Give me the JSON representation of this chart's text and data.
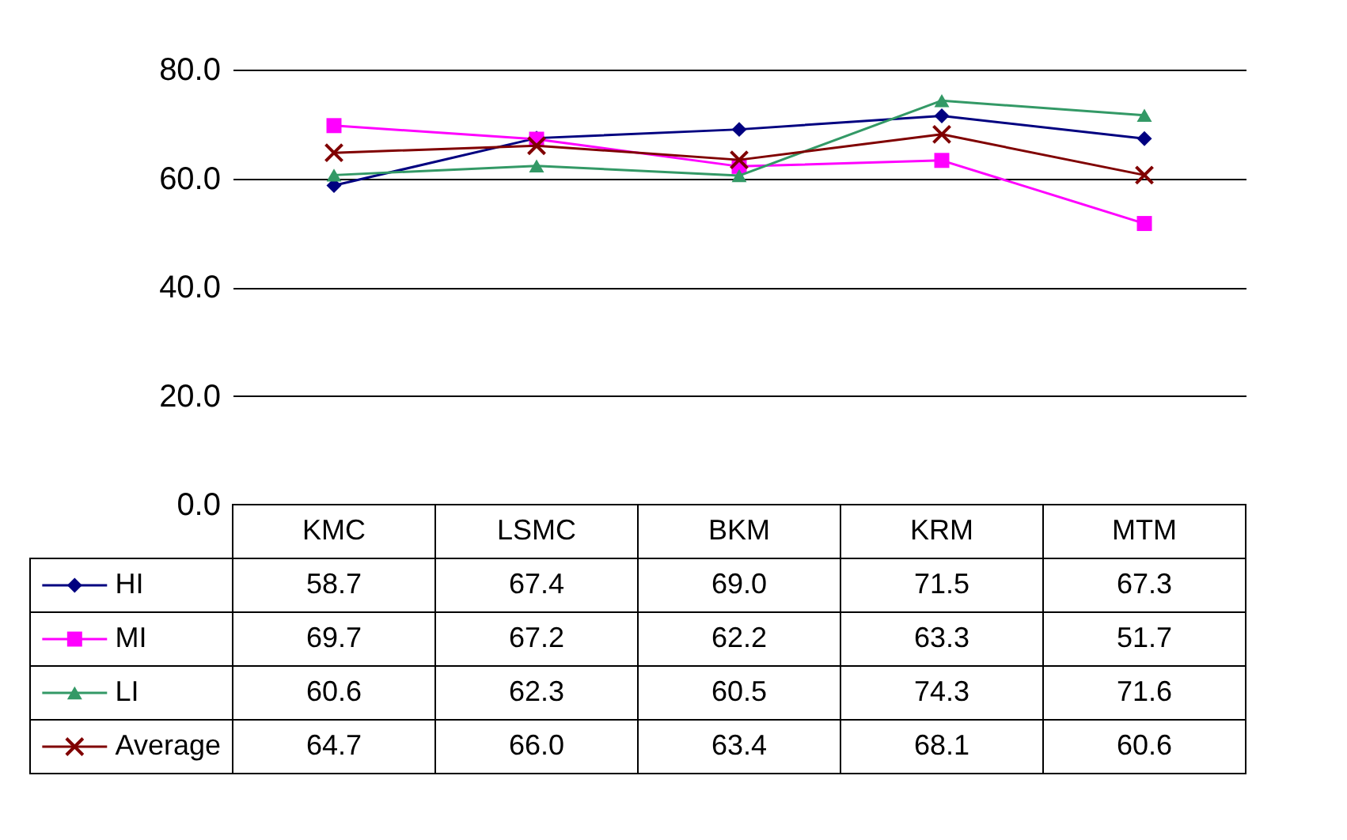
{
  "chart_data": {
    "type": "line",
    "categories": [
      "KMC",
      "LSMC",
      "BKM",
      "KRM",
      "MTM"
    ],
    "ylim": [
      0,
      80
    ],
    "yticks": [
      {
        "value": 0,
        "label": "0.0"
      },
      {
        "value": 20,
        "label": "20.0"
      },
      {
        "value": 40,
        "label": "40.0"
      },
      {
        "value": 60,
        "label": "60.0"
      },
      {
        "value": 80,
        "label": "80.0"
      }
    ],
    "grid": "y",
    "legend": "bottom left",
    "series": [
      {
        "name": "HI",
        "color": "#000080",
        "marker": "diamond",
        "values": [
          58.7,
          67.4,
          69.0,
          71.5,
          67.3
        ],
        "value_labels": [
          "58.7",
          "67.4",
          "69.0",
          "71.5",
          "67.3"
        ]
      },
      {
        "name": "MI",
        "color": "#ff00ff",
        "marker": "square",
        "values": [
          69.7,
          67.2,
          62.2,
          63.3,
          51.7
        ],
        "value_labels": [
          "69.7",
          "67.2",
          "62.2",
          "63.3",
          "51.7"
        ]
      },
      {
        "name": "LI",
        "color": "#339966",
        "marker": "triangle",
        "values": [
          60.6,
          62.3,
          60.5,
          74.3,
          71.6
        ],
        "value_labels": [
          "60.6",
          "62.3",
          "60.5",
          "74.3",
          "71.6"
        ]
      },
      {
        "name": "Average",
        "color": "#800000",
        "marker": "cross",
        "values": [
          64.7,
          66.0,
          63.4,
          68.1,
          60.6
        ],
        "value_labels": [
          "64.7",
          "66.0",
          "63.4",
          "68.1",
          "60.6"
        ]
      }
    ]
  }
}
